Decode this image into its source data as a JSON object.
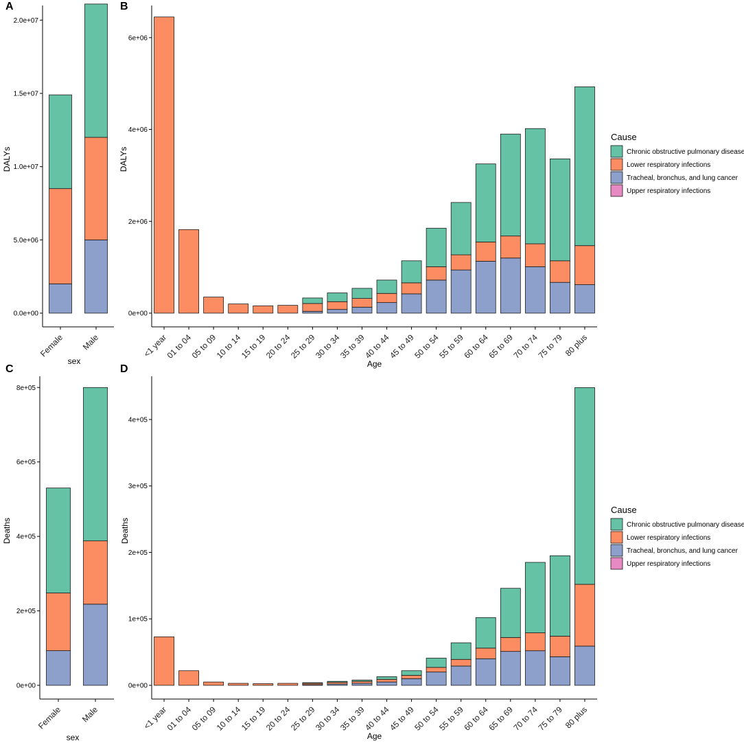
{
  "colors": {
    "Chronic obstructive pulmonary disease": "#66c2a5",
    "Lower respiratory infections": "#fc8d62",
    "Tracheal, bronchus, and lung cancer": "#8da0cb",
    "Upper respiratory infections": "#e78ac3"
  },
  "legend": {
    "title": "Cause",
    "items": [
      "Chronic obstructive pulmonary disease",
      "Lower respiratory infections",
      "Tracheal, bronchus, and lung cancer",
      "Upper respiratory infections"
    ]
  },
  "chart_data": [
    {
      "panel": "A",
      "type": "bar",
      "stacked": true,
      "xlabel": "sex",
      "ylabel": "DALYs",
      "ylim": [
        0,
        21000000
      ],
      "yticks": [
        0,
        5000000,
        10000000,
        15000000,
        20000000
      ],
      "ytick_labels": [
        "0.0e+00",
        "5.0e+06",
        "1.0e+07",
        "1.5e+07",
        "2.0e+07"
      ],
      "categories": [
        "Female",
        "Male"
      ],
      "series": [
        {
          "name": "Tracheal, bronchus, and lung cancer",
          "values": [
            2000000,
            5000000
          ]
        },
        {
          "name": "Lower respiratory infections",
          "values": [
            6500000,
            7000000
          ]
        },
        {
          "name": "Upper respiratory infections",
          "values": [
            0,
            0
          ]
        },
        {
          "name": "Chronic obstructive pulmonary disease",
          "values": [
            6400000,
            9100000
          ]
        }
      ]
    },
    {
      "panel": "B",
      "type": "bar",
      "stacked": true,
      "xlabel": "Age",
      "ylabel": "DALYs",
      "ylim": [
        0,
        6700000
      ],
      "yticks": [
        0,
        2000000,
        4000000,
        6000000
      ],
      "ytick_labels": [
        "0e+00",
        "2e+06",
        "4e+06",
        "6e+06"
      ],
      "legend": "right",
      "categories": [
        "<1 year",
        "01 to 04",
        "05 to 09",
        "10 to 14",
        "15 to 19",
        "20 to 24",
        "25 to 29",
        "30 to 34",
        "35 to 39",
        "40 to 44",
        "45 to 49",
        "50 to 54",
        "55 to 59",
        "60 to 64",
        "65 to 69",
        "70 to 74",
        "75 to 79",
        "80 plus"
      ],
      "series": [
        {
          "name": "Tracheal, bronchus, and lung cancer",
          "values": [
            0,
            0,
            0,
            0,
            0,
            0,
            40000,
            80000,
            130000,
            230000,
            420000,
            720000,
            940000,
            1130000,
            1200000,
            1010000,
            670000,
            620000
          ]
        },
        {
          "name": "Lower respiratory infections",
          "values": [
            6450000,
            1820000,
            350000,
            200000,
            160000,
            170000,
            170000,
            170000,
            190000,
            200000,
            240000,
            290000,
            330000,
            420000,
            480000,
            500000,
            470000,
            850000
          ]
        },
        {
          "name": "Upper respiratory infections",
          "values": [
            0,
            0,
            0,
            0,
            0,
            0,
            0,
            0,
            0,
            0,
            0,
            0,
            0,
            0,
            0,
            0,
            0,
            0
          ]
        },
        {
          "name": "Chronic obstructive pulmonary disease",
          "values": [
            0,
            0,
            0,
            0,
            0,
            0,
            120000,
            190000,
            220000,
            290000,
            480000,
            840000,
            1140000,
            1700000,
            2220000,
            2510000,
            2220000,
            3460000
          ]
        }
      ]
    },
    {
      "panel": "C",
      "type": "bar",
      "stacked": true,
      "xlabel": "sex",
      "ylabel": "Deaths",
      "ylim": [
        0,
        830000
      ],
      "yticks": [
        0,
        200000,
        400000,
        600000,
        800000
      ],
      "ytick_labels": [
        "0e+00",
        "2e+05",
        "4e+05",
        "6e+05",
        "8e+05"
      ],
      "categories": [
        "Female",
        "Male"
      ],
      "series": [
        {
          "name": "Tracheal, bronchus, and lung cancer",
          "values": [
            93000,
            218000
          ]
        },
        {
          "name": "Lower respiratory infections",
          "values": [
            155000,
            170000
          ]
        },
        {
          "name": "Upper respiratory infections",
          "values": [
            0,
            0
          ]
        },
        {
          "name": "Chronic obstructive pulmonary disease",
          "values": [
            282000,
            412000
          ]
        }
      ]
    },
    {
      "panel": "D",
      "type": "bar",
      "stacked": true,
      "xlabel": "Age",
      "ylabel": "Deaths",
      "ylim": [
        0,
        465000
      ],
      "yticks": [
        0,
        100000,
        200000,
        300000,
        400000
      ],
      "ytick_labels": [
        "0e+00",
        "1e+05",
        "2e+05",
        "3e+05",
        "4e+05"
      ],
      "legend": "right",
      "categories": [
        "<1 year",
        "01 to 04",
        "05 to 09",
        "10 to 14",
        "15 to 19",
        "20 to 24",
        "25 to 29",
        "30 to 34",
        "35 to 39",
        "40 to 44",
        "45 to 49",
        "50 to 54",
        "55 to 59",
        "60 to 64",
        "65 to 69",
        "70 to 74",
        "75 to 79",
        "80 plus"
      ],
      "series": [
        {
          "name": "Tracheal, bronchus, and lung cancer",
          "values": [
            0,
            0,
            0,
            0,
            0,
            0,
            1000,
            2000,
            3000,
            5000,
            10000,
            20000,
            29000,
            40000,
            51000,
            52000,
            43000,
            59000
          ]
        },
        {
          "name": "Lower respiratory infections",
          "values": [
            73000,
            22000,
            5000,
            3000,
            2500,
            3000,
            2000,
            2500,
            3000,
            4000,
            5000,
            7000,
            10000,
            16000,
            21000,
            27000,
            31000,
            93000
          ]
        },
        {
          "name": "Upper respiratory infections",
          "values": [
            0,
            0,
            0,
            0,
            0,
            0,
            0,
            0,
            0,
            0,
            0,
            0,
            0,
            0,
            0,
            0,
            0,
            0
          ]
        },
        {
          "name": "Chronic obstructive pulmonary disease",
          "values": [
            0,
            0,
            0,
            0,
            0,
            0,
            1000,
            1500,
            2000,
            4000,
            7000,
            14000,
            25000,
            46000,
            74000,
            106000,
            121000,
            296000
          ]
        }
      ]
    }
  ]
}
